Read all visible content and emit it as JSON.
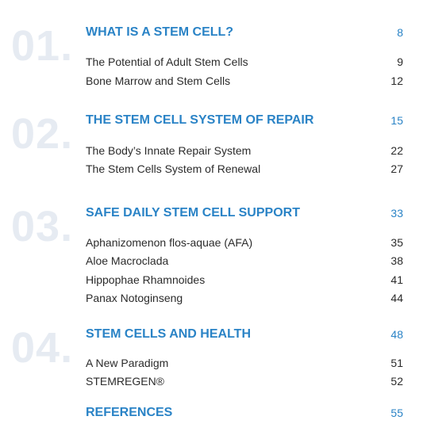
{
  "sections": [
    {
      "number": "01.",
      "title": "WHAT IS A STEM CELL?",
      "page": "8",
      "entries": [
        {
          "label": "The Potential of Adult Stem Cells",
          "page": "9"
        },
        {
          "label": "Bone Marrow and Stem Cells",
          "page": "12"
        }
      ]
    },
    {
      "number": "02.",
      "title": "THE STEM CELL SYSTEM OF REPAIR",
      "page": "15",
      "entries": [
        {
          "label": "The Body’s Innate Repair System",
          "page": "22"
        },
        {
          "label": "The Stem Cells System of Renewal",
          "page": "27"
        }
      ]
    },
    {
      "number": "03.",
      "title": "SAFE DAILY STEM CELL SUPPORT",
      "page": "33",
      "entries": [
        {
          "label": "Aphanizomenon flos-aquae (AFA)",
          "page": "35"
        },
        {
          "label": "Aloe Macroclada",
          "page": "38"
        },
        {
          "label": "Hippophae Rhamnoides",
          "page": "41"
        },
        {
          "label": "Panax Notoginseng",
          "page": "44"
        }
      ]
    },
    {
      "number": "04.",
      "title": "STEM CELLS AND HEALTH",
      "page": "48",
      "entries": [
        {
          "label": "A New Paradigm",
          "page": "51"
        },
        {
          "label": "STEMREGEN®",
          "page": "52"
        }
      ]
    }
  ],
  "references": {
    "title": "REFERENCES",
    "page": "55"
  },
  "colors": {
    "accent": "#2a83c6",
    "number": "#e6ebf2",
    "text": "#2b2b2b"
  }
}
